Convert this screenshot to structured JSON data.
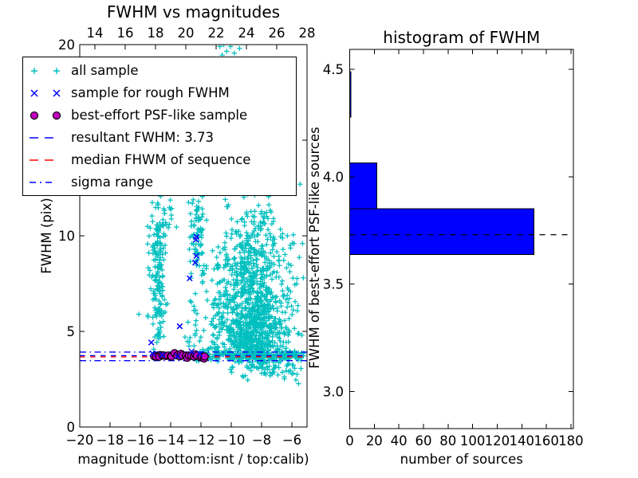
{
  "figure": {
    "background": "#ffffff"
  },
  "chart_data": [
    {
      "type": "scatter",
      "title": "FWHM vs magnitudes",
      "xlabel": "magnitude (bottom:isnt / top:calib)",
      "ylabel": "FWHM (pix)",
      "xlim": [
        -20,
        -5
      ],
      "ylim": [
        0,
        20
      ],
      "x_bottom_ticks": {
        "values": [
          -20,
          -18,
          -16,
          -14,
          -12,
          -10,
          -8,
          -6
        ],
        "labels": [
          "−20",
          "−18",
          "−16",
          "−14",
          "−12",
          "−10",
          "−8",
          "−6"
        ]
      },
      "x_top_axis": {
        "note": "calib magnitudes",
        "positions_in_bottom_scale": [
          -19,
          -17,
          -15,
          -13,
          -11,
          -9,
          -7,
          -5
        ],
        "labels": [
          "14",
          "16",
          "18",
          "20",
          "22",
          "24",
          "26",
          "28"
        ]
      },
      "y_ticks": {
        "values": [
          0,
          5,
          10,
          15,
          20
        ],
        "labels": [
          "0",
          "5",
          "10",
          "15",
          "20"
        ]
      },
      "series": {
        "all_sample": {
          "label": "all sample",
          "marker": "plus",
          "color": "#00bfbf",
          "clusters": [
            {
              "n": 165,
              "x": {
                "m": -14.82,
                "s": 0.26,
                "lo": -15.55,
                "hi": -14.15
              },
              "y": {
                "m": 7.8,
                "s": 2.1,
                "lo": 3.95,
                "hi": 12.2
              }
            },
            {
              "n": 30,
              "x": {
                "m": -14.55,
                "s": 0.5,
                "lo": -15.6,
                "hi": -13.5
              },
              "y": {
                "m": 10.9,
                "s": 0.9,
                "lo": 9.2,
                "hi": 12.4
              }
            },
            {
              "n": 80,
              "x": {
                "m": -12.25,
                "s": 0.28,
                "lo": -12.95,
                "hi": -11.55
              },
              "y": {
                "m": 9.9,
                "s": 1.35,
                "lo": 6.6,
                "hi": 12.3
              }
            },
            {
              "n": 22,
              "x": {
                "m": -12.4,
                "s": 0.38,
                "lo": -13.2,
                "hi": -11.6
              },
              "y": {
                "m": 5.4,
                "s": 1.1,
                "lo": 4.0,
                "hi": 7.2
              }
            },
            {
              "n": 540,
              "x": {
                "m": -8.45,
                "s": 1.05,
                "lo": -11.2,
                "hi": -5.18
              },
              "y": {
                "m": 4.9,
                "s": 1.1,
                "lo": 3.35,
                "hi": 8.2
              }
            },
            {
              "n": 410,
              "x": {
                "m": -8.65,
                "s": 1.15,
                "lo": -11.2,
                "hi": -5.18
              },
              "y": {
                "m": 8.3,
                "s": 1.75,
                "lo": 5.2,
                "hi": 13.2
              }
            },
            {
              "n": 130,
              "x": {
                "u": [
                  -11.35,
                  -5.18
                ]
              },
              "y": {
                "m": 6.6,
                "s": 2.9,
                "lo": 2.75,
                "hi": 13.6
              }
            },
            {
              "n": 60,
              "x": {
                "m": -10.85,
                "s": 0.5,
                "lo": -11.9,
                "hi": -9.9
              },
              "y": {
                "m": 5.7,
                "s": 1.6,
                "lo": 3.7,
                "hi": 10.2
              }
            },
            {
              "n": 235,
              "x": {
                "u": [
                  -12.35,
                  -5.18
                ]
              },
              "y": {
                "m": 3.74,
                "s": 0.13,
                "lo": 3.35,
                "hi": 4.25
              }
            },
            {
              "n": 72,
              "x": {
                "m": -7.3,
                "s": 1.35,
                "lo": -10.0,
                "hi": -5.18
              },
              "y": {
                "m": 3.05,
                "s": 0.33,
                "lo": 2.25,
                "hi": 3.55
              }
            }
          ],
          "points": [
            [
              -10.75,
              19.9
            ],
            [
              -10.5,
              20.0
            ],
            [
              -10.3,
              19.65
            ],
            [
              -10.05,
              19.9
            ],
            [
              -9.8,
              19.55
            ],
            [
              -9.45,
              19.8
            ],
            [
              -10.6,
              19.45
            ],
            [
              -5.45,
              12.7
            ],
            [
              -5.9,
              13.05
            ],
            [
              -5.3,
              9.6
            ],
            [
              -5.6,
              6.35
            ],
            [
              -6.3,
              6.9
            ],
            [
              -5.35,
              4.8
            ],
            [
              -5.25,
              7.8
            ],
            [
              -16.1,
              5.9
            ]
          ]
        },
        "rough_sample": {
          "label": "sample for rough FWHM",
          "marker": "x",
          "color": "#0000ff",
          "points": [
            [
              -12.3,
              9.95
            ],
            [
              -12.33,
              9.8
            ],
            [
              -12.3,
              8.95
            ],
            [
              -12.38,
              8.6
            ],
            [
              -12.75,
              7.78
            ],
            [
              -13.4,
              5.27
            ],
            [
              -15.28,
              4.42
            ],
            [
              -12.62,
              3.95
            ],
            [
              -15.2,
              3.85
            ],
            [
              -14.55,
              3.77
            ],
            [
              -12.08,
              3.82
            ],
            [
              -13.55,
              3.7
            ]
          ]
        },
        "psf_sample": {
          "label": "best-effort PSF-like sample",
          "marker": "circle",
          "color": "#bf00bf",
          "edge": "#000000",
          "generator": {
            "count": 26,
            "x_min": -15.05,
            "x_max": -11.7,
            "y_mean": 3.71,
            "y_sd": 0.05
          }
        }
      },
      "lines": [
        {
          "role": "resultant",
          "label": "resultant FWHM: 3.73",
          "y": 3.73,
          "color": "#0000ff",
          "style": "dashed"
        },
        {
          "role": "median",
          "label": "median FHWM of sequence",
          "y": 3.67,
          "color": "#ff0000",
          "style": "dashed"
        },
        {
          "role": "sigma-upper",
          "label": "sigma range",
          "y": 3.92,
          "color": "#0000ff",
          "style": "dashdot"
        },
        {
          "role": "sigma-lower",
          "label": "sigma range",
          "y": 3.47,
          "color": "#0000ff",
          "style": "dashdot"
        }
      ],
      "legend": {
        "entries": [
          {
            "marker": "plus",
            "color": "#00bfbf",
            "label": "all sample"
          },
          {
            "marker": "x",
            "color": "#0000ff",
            "label": "sample for rough FWHM"
          },
          {
            "marker": "circle",
            "color": "#bf00bf",
            "edge": "#000000",
            "label": "best-effort PSF-like sample"
          },
          {
            "marker": "dashed",
            "color": "#0000ff",
            "label": "resultant FWHM: 3.73"
          },
          {
            "marker": "dashed",
            "color": "#ff0000",
            "label": "median FHWM of sequence"
          },
          {
            "marker": "dashdot",
            "color": "#0000ff",
            "label": "sigma range"
          }
        ]
      }
    },
    {
      "type": "bar-horizontal",
      "title": "histogram of FWHM",
      "xlabel": "number of sources",
      "ylabel": "FWHM of best-effort PSF-like sources",
      "xlim": [
        0,
        182
      ],
      "ylim": [
        2.827,
        4.593
      ],
      "bin_edges": [
        3.638,
        3.851,
        4.064,
        4.277,
        4.49
      ],
      "counts": [
        150,
        22,
        0,
        1
      ],
      "bar_color": "#0000ff",
      "bar_edge": "#000000",
      "x_ticks": {
        "values": [
          0,
          20,
          40,
          60,
          80,
          100,
          120,
          140,
          160,
          180
        ],
        "labels": [
          "0",
          "20",
          "40",
          "60",
          "80",
          "100",
          "120",
          "140",
          "160",
          "180"
        ]
      },
      "y_ticks": {
        "values": [
          3.0,
          3.5,
          4.0,
          4.5
        ],
        "labels": [
          "3.0",
          "3.5",
          "4.0",
          "4.5"
        ]
      },
      "marker_line": {
        "y": 3.73,
        "color": "#000000",
        "style": "dashed"
      }
    }
  ]
}
